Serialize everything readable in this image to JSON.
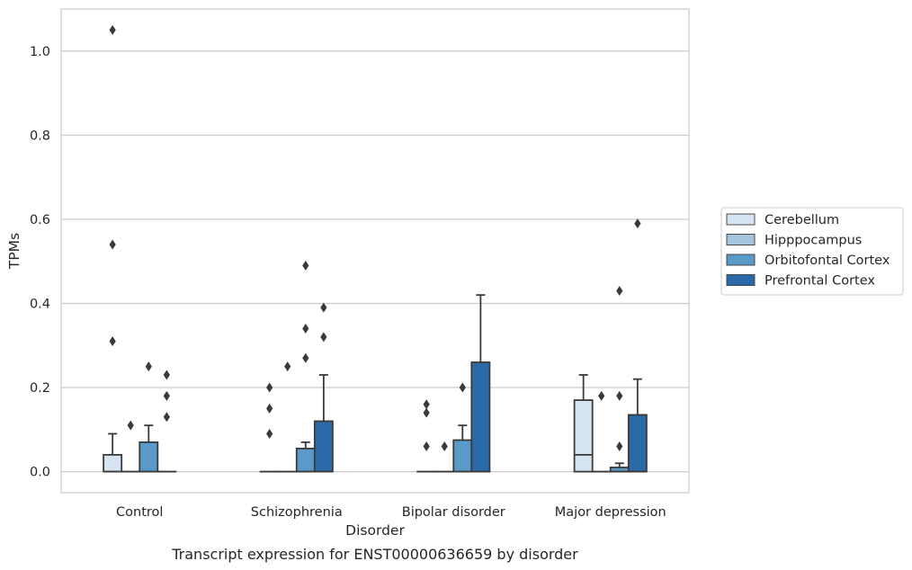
{
  "chart_data": {
    "type": "box",
    "xlabel": "Disorder",
    "ylabel": "TPMs",
    "caption": "Transcript expression for ENST00000636659 by disorder",
    "categories": [
      "Control",
      "Schizophrenia",
      "Bipolar disorder",
      "Major depression"
    ],
    "ylim": [
      -0.05,
      1.1
    ],
    "yticks": [
      0.0,
      0.2,
      0.4,
      0.6,
      0.8,
      1.0
    ],
    "ytick_labels": [
      "0.0",
      "0.2",
      "0.4",
      "0.6",
      "0.8",
      "1.0"
    ],
    "grid": "horizontal",
    "legend_position": "right",
    "series": [
      {
        "name": "Cerebellum",
        "color": "#d6e4f2",
        "boxes": [
          {
            "q1": 0.0,
            "median": 0.0,
            "q3": 0.04,
            "whisker_low": 0.0,
            "whisker_high": 0.09,
            "outliers": [
              0.31,
              0.54,
              1.05
            ]
          },
          {
            "q1": 0.0,
            "median": 0.0,
            "q3": 0.0,
            "whisker_low": 0.0,
            "whisker_high": 0.0,
            "outliers": [
              0.09,
              0.15,
              0.2
            ]
          },
          {
            "q1": 0.0,
            "median": 0.0,
            "q3": 0.0,
            "whisker_low": 0.0,
            "whisker_high": 0.0,
            "outliers": [
              0.06,
              0.14,
              0.16
            ]
          },
          {
            "q1": 0.0,
            "median": 0.04,
            "q3": 0.17,
            "whisker_low": 0.0,
            "whisker_high": 0.23,
            "outliers": []
          }
        ]
      },
      {
        "name": "Hipppocampus",
        "color": "#a4c5df",
        "boxes": [
          {
            "q1": 0.0,
            "median": 0.0,
            "q3": 0.0,
            "whisker_low": 0.0,
            "whisker_high": 0.0,
            "outliers": [
              0.11
            ]
          },
          {
            "q1": 0.0,
            "median": 0.0,
            "q3": 0.0,
            "whisker_low": 0.0,
            "whisker_high": 0.0,
            "outliers": [
              0.25
            ]
          },
          {
            "q1": 0.0,
            "median": 0.0,
            "q3": 0.0,
            "whisker_low": 0.0,
            "whisker_high": 0.0,
            "outliers": [
              0.06
            ]
          },
          {
            "q1": 0.0,
            "median": 0.0,
            "q3": 0.0,
            "whisker_low": 0.0,
            "whisker_high": 0.0,
            "outliers": [
              0.18
            ]
          }
        ]
      },
      {
        "name": "Orbitofontal Cortex",
        "color": "#5a9ac8",
        "boxes": [
          {
            "q1": 0.0,
            "median": 0.0,
            "q3": 0.07,
            "whisker_low": 0.0,
            "whisker_high": 0.11,
            "outliers": [
              0.25
            ]
          },
          {
            "q1": 0.0,
            "median": 0.0,
            "q3": 0.055,
            "whisker_low": 0.0,
            "whisker_high": 0.07,
            "outliers": [
              0.27,
              0.34,
              0.49
            ]
          },
          {
            "q1": 0.0,
            "median": 0.0,
            "q3": 0.075,
            "whisker_low": 0.0,
            "whisker_high": 0.11,
            "outliers": [
              0.2
            ]
          },
          {
            "q1": 0.0,
            "median": 0.0,
            "q3": 0.01,
            "whisker_low": 0.0,
            "whisker_high": 0.02,
            "outliers": [
              0.06,
              0.18,
              0.43
            ]
          }
        ]
      },
      {
        "name": "Prefrontal Cortex",
        "color": "#2b6aa8",
        "boxes": [
          {
            "q1": 0.0,
            "median": 0.0,
            "q3": 0.0,
            "whisker_low": 0.0,
            "whisker_high": 0.0,
            "outliers": [
              0.13,
              0.18,
              0.23
            ]
          },
          {
            "q1": 0.0,
            "median": 0.0,
            "q3": 0.12,
            "whisker_low": 0.0,
            "whisker_high": 0.23,
            "outliers": [
              0.32,
              0.39
            ]
          },
          {
            "q1": 0.0,
            "median": 0.0,
            "q3": 0.26,
            "whisker_low": 0.0,
            "whisker_high": 0.42,
            "outliers": []
          },
          {
            "q1": 0.0,
            "median": 0.0,
            "q3": 0.135,
            "whisker_low": 0.0,
            "whisker_high": 0.22,
            "outliers": [
              0.59
            ]
          }
        ]
      }
    ]
  }
}
